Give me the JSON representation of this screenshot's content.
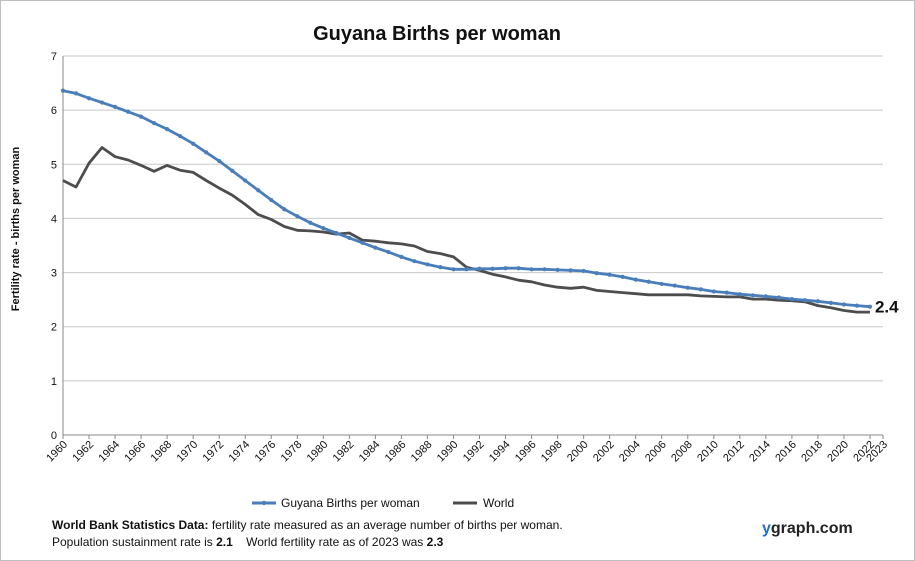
{
  "chart_data": {
    "type": "line",
    "title": "Guyana Births per woman",
    "xlabel": "",
    "ylabel": "Fertility rate  - births per woman",
    "ylim": [
      0,
      7
    ],
    "yticks": [
      "0",
      "1",
      "2",
      "3",
      "4",
      "5",
      "6",
      "7"
    ],
    "xlim": [
      1960,
      2023
    ],
    "xticks": [
      "1960",
      "1962",
      "1964",
      "1966",
      "1968",
      "1970",
      "1972",
      "1974",
      "1976",
      "1978",
      "1980",
      "1982",
      "1984",
      "1986",
      "1988",
      "1990",
      "1992",
      "1994",
      "1996",
      "1998",
      "2000",
      "2002",
      "2004",
      "2006",
      "2008",
      "2010",
      "2012",
      "2014",
      "2016",
      "2018",
      "2020",
      "2022",
      "2023"
    ],
    "grid": true,
    "legend_position": "bottom",
    "end_label": "2.4",
    "x": [
      1960,
      1961,
      1962,
      1963,
      1964,
      1965,
      1966,
      1967,
      1968,
      1969,
      1970,
      1971,
      1972,
      1973,
      1974,
      1975,
      1976,
      1977,
      1978,
      1979,
      1980,
      1981,
      1982,
      1983,
      1984,
      1985,
      1986,
      1987,
      1988,
      1989,
      1990,
      1991,
      1992,
      1993,
      1994,
      1995,
      1996,
      1997,
      1998,
      1999,
      2000,
      2001,
      2002,
      2003,
      2004,
      2005,
      2006,
      2007,
      2008,
      2009,
      2010,
      2011,
      2012,
      2013,
      2014,
      2015,
      2016,
      2017,
      2018,
      2019,
      2020,
      2021,
      2022
    ],
    "series": [
      {
        "name": "Guyana Births per woman",
        "color": "#4a7ebb",
        "markers": true,
        "values": [
          6.36,
          6.31,
          6.22,
          6.14,
          6.06,
          5.97,
          5.88,
          5.76,
          5.65,
          5.52,
          5.38,
          5.22,
          5.06,
          4.88,
          4.7,
          4.52,
          4.34,
          4.17,
          4.04,
          3.92,
          3.82,
          3.73,
          3.64,
          3.55,
          3.46,
          3.38,
          3.29,
          3.21,
          3.15,
          3.1,
          3.06,
          3.06,
          3.07,
          3.07,
          3.08,
          3.08,
          3.06,
          3.06,
          3.05,
          3.04,
          3.03,
          2.99,
          2.96,
          2.92,
          2.87,
          2.83,
          2.79,
          2.76,
          2.72,
          2.69,
          2.65,
          2.63,
          2.6,
          2.58,
          2.56,
          2.54,
          2.51,
          2.49,
          2.47,
          2.44,
          2.41,
          2.39,
          2.37
        ]
      },
      {
        "name": "World",
        "color": "#4d4d4d",
        "markers": false,
        "values": [
          4.7,
          4.58,
          5.02,
          5.31,
          5.14,
          5.08,
          4.98,
          4.87,
          4.98,
          4.89,
          4.85,
          4.7,
          4.56,
          4.43,
          4.26,
          4.07,
          3.98,
          3.85,
          3.78,
          3.77,
          3.75,
          3.71,
          3.73,
          3.6,
          3.58,
          3.55,
          3.53,
          3.49,
          3.39,
          3.35,
          3.29,
          3.1,
          3.04,
          2.97,
          2.92,
          2.86,
          2.83,
          2.77,
          2.73,
          2.71,
          2.73,
          2.67,
          2.65,
          2.63,
          2.61,
          2.59,
          2.59,
          2.59,
          2.59,
          2.57,
          2.56,
          2.55,
          2.55,
          2.51,
          2.51,
          2.49,
          2.48,
          2.46,
          2.39,
          2.35,
          2.3,
          2.27,
          2.27
        ]
      }
    ]
  },
  "footer": {
    "line1_bold": "World Bank Statistics Data:",
    "line1_rest": " fertility rate measured as an average number  of births per woman.",
    "line2_a": "Population sustainment rate is ",
    "line2_b": "2.1",
    "line2_c": "    World fertility rate as of 2023 was ",
    "line2_d": "2.3"
  },
  "brand": {
    "y": "y",
    "rest": "graph.com"
  }
}
